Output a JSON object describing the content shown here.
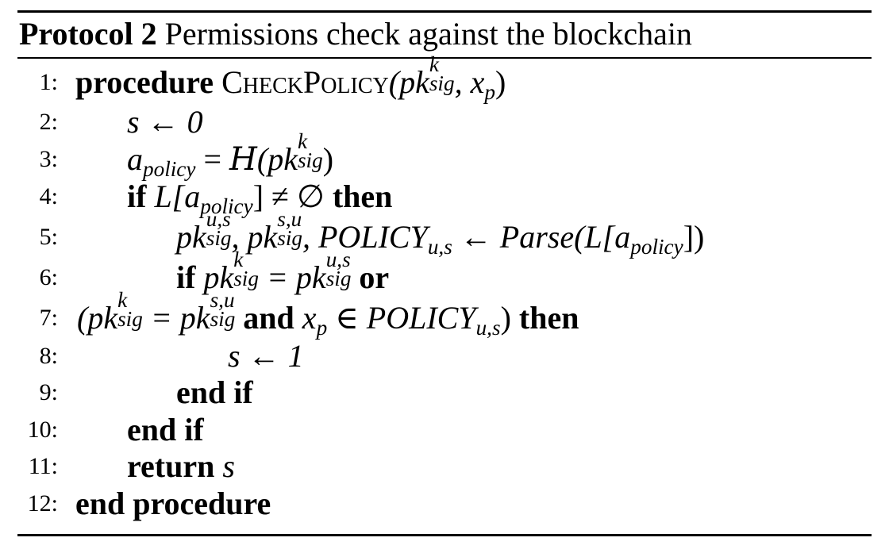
{
  "caption": {
    "label": "Protocol 2",
    "title": "Permissions check against the blockchain"
  },
  "lines": [
    {
      "num": "1:",
      "kw1": "procedure",
      "name": "CheckPolicy",
      "args_open": "(pk",
      "sup": "k",
      "sub": "sig",
      "args_close": ", x",
      "args_sub": "p",
      "args_end": ")"
    },
    {
      "num": "2:",
      "text": "s ← 0"
    },
    {
      "num": "3:",
      "a": "a",
      "a_sub": "policy",
      "eq": " = ",
      "h": "H",
      "open": "(pk",
      "sup": "k",
      "sub": "sig",
      "close": ")"
    },
    {
      "num": "4:",
      "kw1": "if",
      "l": " L[a",
      "l_sub": "policy",
      "rest": "] ≠ ∅ ",
      "kw2": "then"
    },
    {
      "num": "5:",
      "t1": "pk",
      "sup1": "u,s",
      "sub1": "sig",
      "t2": ", pk",
      "sup2": "s,u",
      "sub2": "sig",
      "t3": ", POLICY",
      "sub3": "u,s",
      "t4": " ← Parse(L[a",
      "sub4": "policy",
      "t5": "])"
    },
    {
      "num": "6:",
      "kw1": "if",
      "t1": " pk",
      "sup1": "k",
      "sub1": "sig",
      "t2": " = pk",
      "sup2": "u,s",
      "sub2": "sig",
      "kw2": "or"
    },
    {
      "num": "7:",
      "t1": "(pk",
      "sup1": "k",
      "sub1": "sig",
      "t2": " = pk",
      "sup2": "s,u",
      "sub2": "sig",
      "kw1": "and",
      "t3": " x",
      "sub3": "p",
      "t4": " ∈ POLICY",
      "sub4": "u,s",
      "t5": ")",
      "kw2": "then"
    },
    {
      "num": "8:",
      "text": "s ← 1"
    },
    {
      "num": "9:",
      "kw": "end if"
    },
    {
      "num": "10:",
      "kw": "end if"
    },
    {
      "num": "11:",
      "kw": "return",
      "var": "s"
    },
    {
      "num": "12:",
      "kw": "end procedure"
    }
  ]
}
